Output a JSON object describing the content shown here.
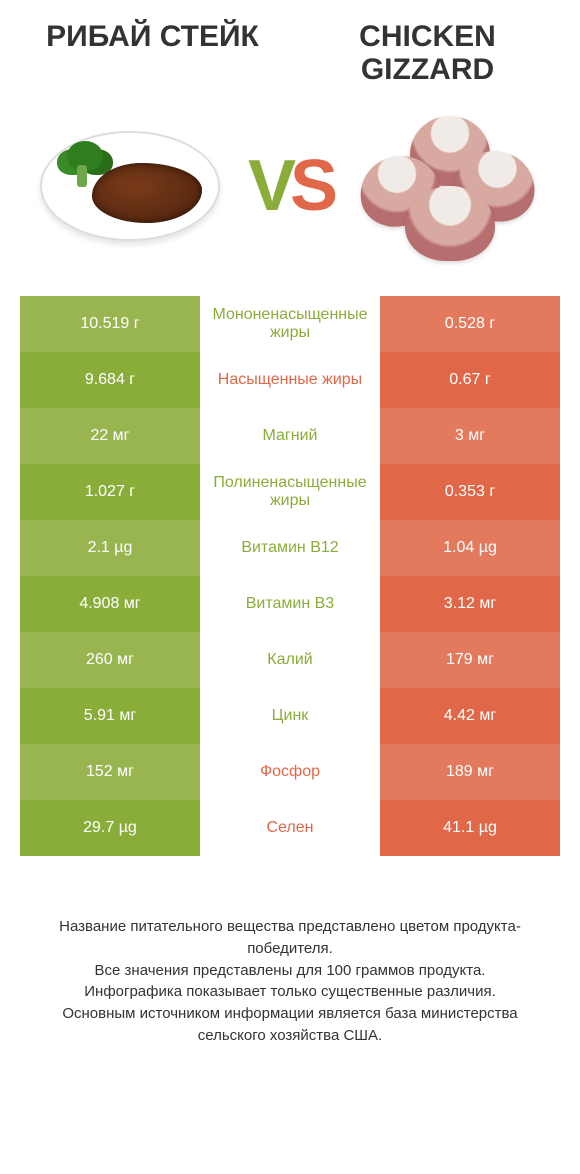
{
  "header": {
    "left_title": "РИБАЙ СТЕЙК",
    "right_title": "CHICKEN GIZZARD",
    "vs_v": "V",
    "vs_s": "S"
  },
  "colors": {
    "green_primary": "#8aad3a",
    "green_light": "#99b550",
    "orange_primary": "#e06849",
    "orange_light": "#e3795d",
    "text_dark": "#333333",
    "background": "#ffffff"
  },
  "table": {
    "rows": [
      {
        "left": "10.519 г",
        "label": "Мононенасыщенные жиры",
        "right": "0.528 г",
        "winner": "left"
      },
      {
        "left": "9.684 г",
        "label": "Насыщенные жиры",
        "right": "0.67 г",
        "winner": "right"
      },
      {
        "left": "22 мг",
        "label": "Магний",
        "right": "3 мг",
        "winner": "left"
      },
      {
        "left": "1.027 г",
        "label": "Полиненасыщенные жиры",
        "right": "0.353 г",
        "winner": "left"
      },
      {
        "left": "2.1 µg",
        "label": "Витамин B12",
        "right": "1.04 µg",
        "winner": "left"
      },
      {
        "left": "4.908 мг",
        "label": "Витамин B3",
        "right": "3.12 мг",
        "winner": "left"
      },
      {
        "left": "260 мг",
        "label": "Калий",
        "right": "179 мг",
        "winner": "left"
      },
      {
        "left": "5.91 мг",
        "label": "Цинк",
        "right": "4.42 мг",
        "winner": "left"
      },
      {
        "left": "152 мг",
        "label": "Фосфор",
        "right": "189 мг",
        "winner": "right"
      },
      {
        "left": "29.7 µg",
        "label": "Селен",
        "right": "41.1 µg",
        "winner": "right"
      }
    ]
  },
  "footer": {
    "line1": "Название питательного вещества представлено цветом продукта-победителя.",
    "line2": "Все значения представлены для 100 граммов продукта.",
    "line3": "Инфографика показывает только существенные различия.",
    "line4": "Основным источником информации является база министерства сельского хозяйства США."
  }
}
